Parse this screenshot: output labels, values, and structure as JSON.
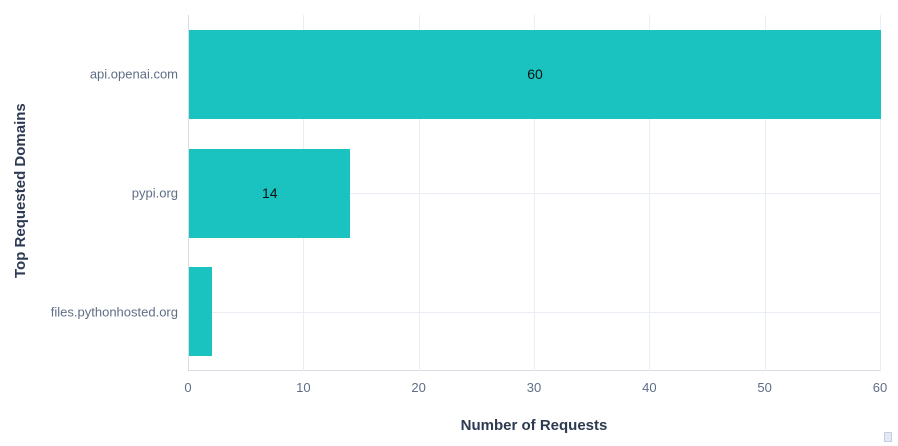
{
  "chart_data": {
    "type": "bar",
    "orientation": "horizontal",
    "title": "",
    "xlabel": "Number of Requests",
    "ylabel": "Top Requested Domains",
    "categories": [
      "api.openai.com",
      "pypi.org",
      "files.pythonhosted.org"
    ],
    "values": [
      60,
      14,
      2
    ],
    "bar_labels": [
      "60",
      "14",
      ""
    ],
    "xlim": [
      0,
      60
    ],
    "x_ticks": [
      0,
      10,
      20,
      30,
      40,
      50,
      60
    ],
    "grid": "on",
    "legend": "none",
    "colors": {
      "bar": "#1ac3bf",
      "grid_line": "#e9edf4",
      "axis_line": "#d8dde4",
      "tick_label": "#5f6e87",
      "axis_title": "#2d3a52",
      "bar_label": "#111111"
    }
  }
}
